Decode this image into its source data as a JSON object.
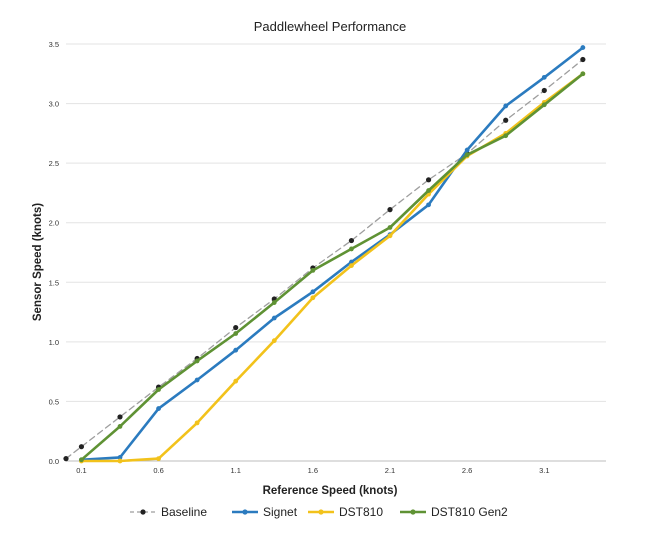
{
  "chart_data": {
    "type": "line",
    "title": "Paddlewheel Performance",
    "xlabel": "Reference Speed (knots)",
    "ylabel": "Sensor Speed (knots)",
    "xlim": [
      0.0,
      3.5
    ],
    "ylim": [
      0,
      3.5
    ],
    "x_ticks": [
      0.1,
      0.6,
      1.1,
      1.6,
      2.1,
      2.6,
      3.1
    ],
    "x_tick_labels": [
      "0.1",
      "0.6",
      "1.1",
      "1.6",
      "2.1",
      "2.6",
      "3.1"
    ],
    "y_ticks": [
      0,
      0.5,
      1.0,
      1.5,
      2.0,
      2.5,
      3.0,
      3.5
    ],
    "y_tick_labels": [
      "0.0",
      "0.5",
      "1.0",
      "1.5",
      "2.0",
      "2.5",
      "3.0",
      "3.5"
    ],
    "grid": "horizontal",
    "legend_position": "bottom",
    "series": [
      {
        "name": "Baseline",
        "color": "#222222",
        "style": "dashed",
        "line_color": "#9e9e9e",
        "x": [
          0.0,
          0.1,
          0.35,
          0.6,
          0.85,
          1.1,
          1.35,
          1.6,
          1.85,
          2.1,
          2.35,
          2.6,
          2.85,
          3.1,
          3.35
        ],
        "y": [
          0.02,
          0.12,
          0.37,
          0.62,
          0.86,
          1.12,
          1.36,
          1.62,
          1.85,
          2.11,
          2.36,
          2.58,
          2.86,
          3.11,
          3.37
        ]
      },
      {
        "name": "Signet",
        "color": "#2b7bbf",
        "style": "solid",
        "x": [
          0.1,
          0.35,
          0.6,
          0.85,
          1.1,
          1.35,
          1.6,
          1.85,
          2.1,
          2.35,
          2.6,
          2.85,
          3.1,
          3.35
        ],
        "y": [
          0.01,
          0.03,
          0.44,
          0.68,
          0.93,
          1.2,
          1.42,
          1.67,
          1.9,
          2.15,
          2.61,
          2.98,
          3.22,
          3.47
        ]
      },
      {
        "name": "DST810",
        "color": "#f2c21b",
        "style": "solid",
        "x": [
          0.1,
          0.35,
          0.6,
          0.85,
          1.1,
          1.35,
          1.6,
          1.85,
          2.1,
          2.35,
          2.6,
          2.85,
          3.1,
          3.35
        ],
        "y": [
          0.0,
          0.0,
          0.02,
          0.32,
          0.67,
          1.01,
          1.37,
          1.64,
          1.89,
          2.24,
          2.56,
          2.75,
          3.01,
          3.25
        ]
      },
      {
        "name": "DST810 Gen2",
        "color": "#5f9234",
        "style": "solid",
        "x": [
          0.1,
          0.35,
          0.6,
          0.85,
          1.1,
          1.35,
          1.6,
          1.85,
          2.1,
          2.35,
          2.6,
          2.85,
          3.1,
          3.35
        ],
        "y": [
          0.01,
          0.29,
          0.6,
          0.84,
          1.07,
          1.33,
          1.6,
          1.78,
          1.96,
          2.27,
          2.57,
          2.73,
          2.99,
          3.25
        ]
      }
    ]
  }
}
